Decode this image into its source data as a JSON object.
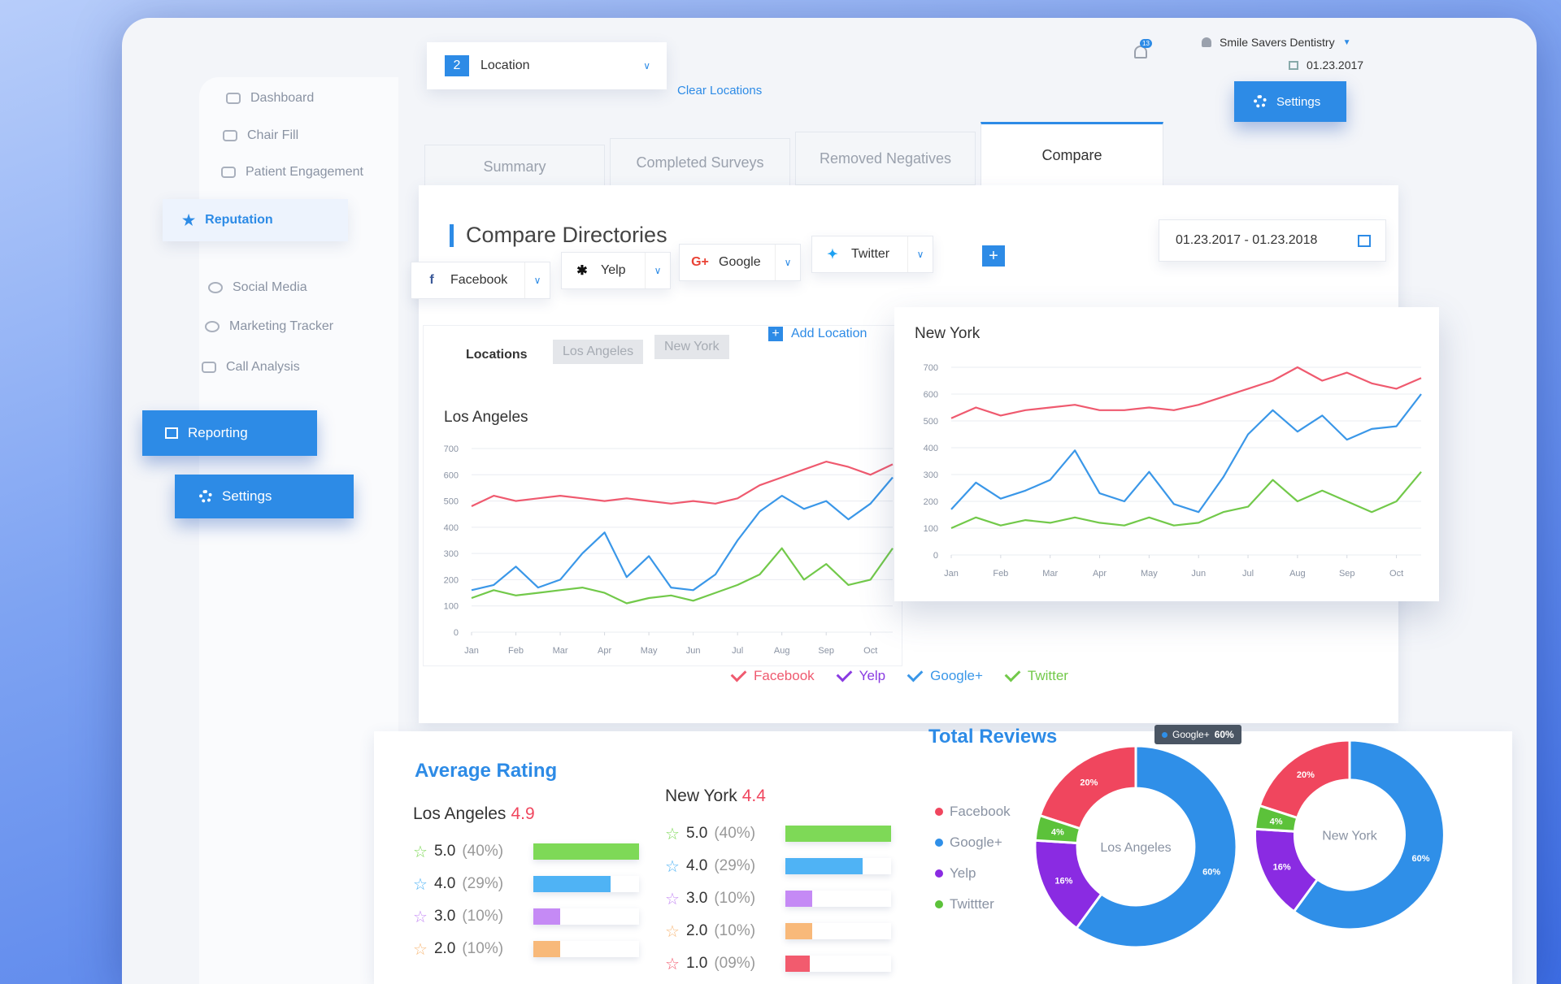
{
  "header": {
    "location_count": 2,
    "location_label": "Location",
    "clear": "Clear Locations",
    "notifications": "13",
    "account": "Smile Savers Dentistry",
    "date": "01.23.2017",
    "settings": "Settings"
  },
  "sidebar": [
    "Dashboard",
    "Chair Fill",
    "Patient Engagement",
    "Reputation",
    "Social Media",
    "Marketing Tracker",
    "Call Analysis",
    "Reporting",
    "Settings"
  ],
  "tabs": [
    "Summary",
    "Completed Surveys",
    "Removed Negatives",
    "Compare"
  ],
  "section_title": "Compare Directories",
  "directories": [
    "Facebook",
    "Yelp",
    "Google",
    "Twitter"
  ],
  "date_range": "01.23.2017 - 01.23.2018",
  "location_tabs": {
    "label": "Locations",
    "items": [
      "Los Angeles",
      "New York"
    ],
    "add": "Add Location"
  },
  "chart_data": [
    {
      "type": "line",
      "title": "Los Angeles",
      "x": [
        0,
        0.5,
        1,
        1.5,
        2,
        2.5,
        3,
        3.5,
        4,
        4.5,
        5,
        5.5,
        6,
        6.5,
        7,
        7.5,
        8,
        8.5,
        9,
        9.5
      ],
      "xlim": [
        0,
        9.5
      ],
      "xticks": [
        {
          "value": 0,
          "label": "Jan"
        },
        {
          "value": 1,
          "label": "Feb"
        },
        {
          "value": 2,
          "label": "Mar"
        },
        {
          "value": 3,
          "label": "Apr"
        },
        {
          "value": 4,
          "label": "May"
        },
        {
          "value": 5,
          "label": "Jun"
        },
        {
          "value": 6,
          "label": "Jul"
        },
        {
          "value": 7,
          "label": "Aug"
        },
        {
          "value": 8,
          "label": "Sep"
        },
        {
          "value": 9,
          "label": "Oct"
        }
      ],
      "ylim": [
        0,
        700
      ],
      "yticks": [
        0,
        100,
        200,
        300,
        400,
        500,
        600,
        700
      ],
      "grid": true,
      "series": [
        {
          "name": "Facebook",
          "color": "#ef5a6f",
          "values": [
            480,
            520,
            500,
            510,
            520,
            510,
            500,
            510,
            500,
            490,
            500,
            490,
            510,
            560,
            590,
            620,
            650,
            630,
            600,
            640
          ]
        },
        {
          "name": "Google+",
          "color": "#3a97e8",
          "values": [
            160,
            180,
            250,
            170,
            200,
            300,
            380,
            210,
            290,
            170,
            160,
            220,
            350,
            460,
            520,
            470,
            500,
            430,
            490,
            590
          ]
        },
        {
          "name": "Twitter",
          "color": "#72c94a",
          "values": [
            130,
            160,
            140,
            150,
            160,
            170,
            150,
            110,
            130,
            140,
            120,
            150,
            180,
            220,
            320,
            200,
            260,
            180,
            200,
            320
          ]
        }
      ]
    },
    {
      "type": "line",
      "title": "New York",
      "x": [
        0,
        0.5,
        1,
        1.5,
        2,
        2.5,
        3,
        3.5,
        4,
        4.5,
        5,
        5.5,
        6,
        6.5,
        7,
        7.5,
        8,
        8.5,
        9,
        9.5
      ],
      "xlim": [
        0,
        9.5
      ],
      "xticks": [
        {
          "value": 0,
          "label": "Jan"
        },
        {
          "value": 1,
          "label": "Feb"
        },
        {
          "value": 2,
          "label": "Mar"
        },
        {
          "value": 3,
          "label": "Apr"
        },
        {
          "value": 4,
          "label": "May"
        },
        {
          "value": 5,
          "label": "Jun"
        },
        {
          "value": 6,
          "label": "Jul"
        },
        {
          "value": 7,
          "label": "Aug"
        },
        {
          "value": 8,
          "label": "Sep"
        },
        {
          "value": 9,
          "label": "Oct"
        }
      ],
      "ylim": [
        0,
        700
      ],
      "yticks": [
        0,
        100,
        200,
        300,
        400,
        500,
        600,
        700
      ],
      "grid": true,
      "series": [
        {
          "name": "Facebook",
          "color": "#ef5a6f",
          "values": [
            510,
            550,
            520,
            540,
            550,
            560,
            540,
            540,
            550,
            540,
            560,
            590,
            620,
            650,
            700,
            650,
            680,
            640,
            620,
            660
          ]
        },
        {
          "name": "Google+",
          "color": "#3a97e8",
          "values": [
            170,
            270,
            210,
            240,
            280,
            390,
            230,
            200,
            310,
            190,
            160,
            290,
            450,
            540,
            460,
            520,
            430,
            470,
            480,
            600
          ]
        },
        {
          "name": "Twitter",
          "color": "#72c94a",
          "values": [
            100,
            140,
            110,
            130,
            120,
            140,
            120,
            110,
            140,
            110,
            120,
            160,
            180,
            280,
            200,
            240,
            200,
            160,
            200,
            310
          ]
        }
      ]
    },
    {
      "type": "pie",
      "title": "Los Angeles",
      "values": [
        20,
        60,
        16,
        4
      ],
      "value_labels": [
        "20%",
        "60%",
        "16%",
        "4%"
      ],
      "colors": [
        "#f0465e",
        "#2f8fe8",
        "#8a2be2",
        "#5cc23a"
      ]
    },
    {
      "type": "pie",
      "title": "New York",
      "values": [
        20,
        60,
        16,
        4
      ],
      "value_labels": [
        "20%",
        "60%",
        "16%",
        "4%"
      ],
      "colors": [
        "#f0465e",
        "#2f8fe8",
        "#8a2be2",
        "#5cc23a"
      ]
    }
  ],
  "legend": [
    {
      "name": "Facebook",
      "color": "#ef5a6f"
    },
    {
      "name": "Yelp",
      "color": "#8a3be2"
    },
    {
      "name": "Google+",
      "color": "#3a97e8"
    },
    {
      "name": "Twitter",
      "color": "#72c94a"
    }
  ],
  "ratings": {
    "title": "Average Rating",
    "locations": [
      {
        "name": "Los Angeles",
        "score": 4.9,
        "rows": [
          {
            "stars": "5.0",
            "value": 40,
            "value_label": "(40%)",
            "color": "#7ed957"
          },
          {
            "stars": "4.0",
            "value": 29,
            "value_label": "(29%)",
            "color": "#4fb3f5"
          },
          {
            "stars": "3.0",
            "value": 10,
            "value_label": "(10%)",
            "color": "#c58af5"
          },
          {
            "stars": "2.0",
            "value": 10,
            "value_label": "(10%)",
            "color": "#f8b97a"
          }
        ]
      },
      {
        "name": "New York",
        "score": 4.4,
        "rows": [
          {
            "stars": "5.0",
            "value": 40,
            "value_label": "(40%)",
            "color": "#7ed957"
          },
          {
            "stars": "4.0",
            "value": 29,
            "value_label": "(29%)",
            "color": "#4fb3f5"
          },
          {
            "stars": "3.0",
            "value": 10,
            "value_label": "(10%)",
            "color": "#c58af5"
          },
          {
            "stars": "2.0",
            "value": 10,
            "value_label": "(10%)",
            "color": "#f8b97a"
          },
          {
            "stars": "1.0",
            "value": 9,
            "value_label": "(09%)",
            "color": "#f25b6e"
          }
        ]
      }
    ]
  },
  "reviews": {
    "title": "Total Reviews",
    "legend": [
      "Facebook",
      "Google+",
      "Yelp",
      "Twittter"
    ],
    "tooltip": {
      "name": "Google+",
      "label": "60%"
    }
  }
}
